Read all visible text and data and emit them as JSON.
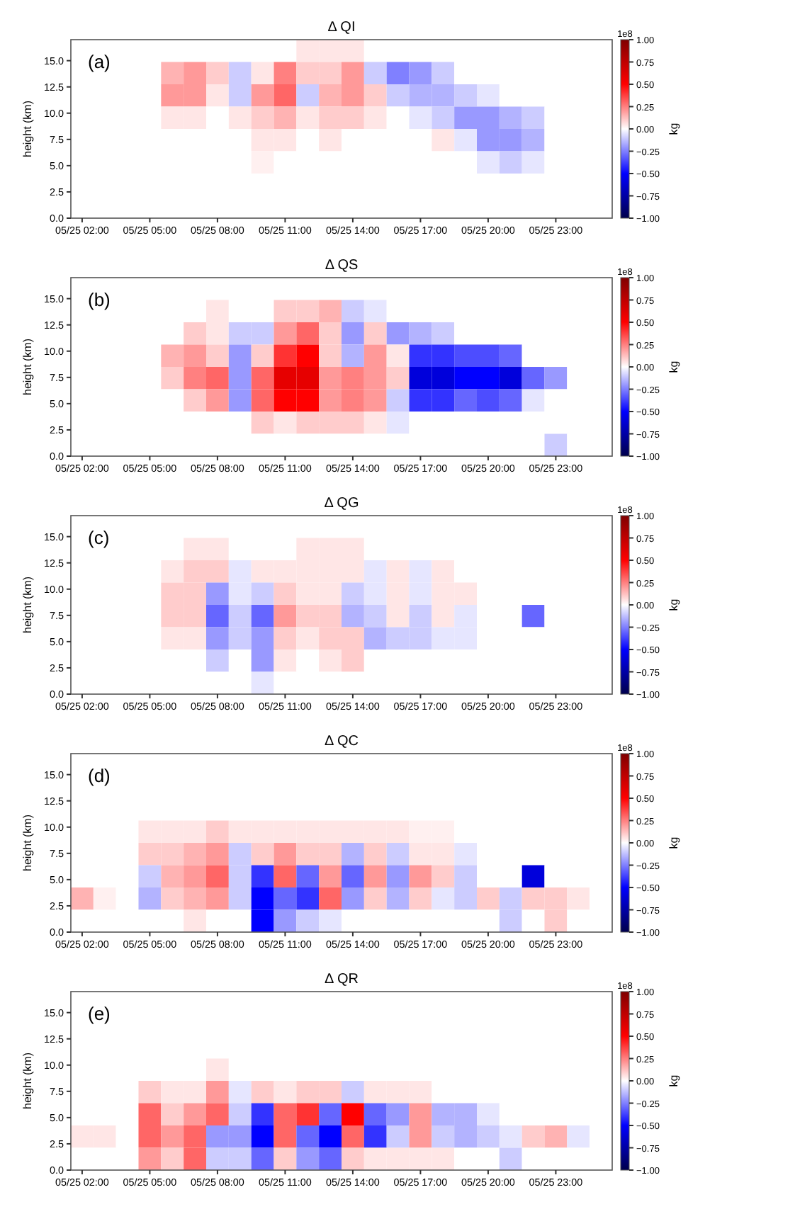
{
  "chart_data": [
    {
      "type": "heatmap",
      "title": "Δ QI",
      "ylabel": "height (km)",
      "clabel": "kg",
      "annotations": [
        "(a)",
        "1e8"
      ],
      "categories": [
        "05/25 02:00",
        null,
        null,
        "05/25 05:00",
        null,
        null,
        "05/25 08:00",
        null,
        null,
        "05/25 11:00",
        null,
        null,
        "05/25 14:00",
        null,
        null,
        "05/25 17:00",
        null,
        null,
        "05/25 20:00",
        null,
        null,
        "05/25 23:00",
        null,
        null
      ],
      "ylim": [
        0,
        17
      ],
      "yticks": [
        {
          "value": 0,
          "label": "0.0"
        },
        2.5,
        {
          "value": 5,
          "label": "5.0"
        },
        7.5,
        {
          "value": 10,
          "label": "10.0"
        },
        12.5,
        {
          "value": 15,
          "label": "15.0"
        }
      ],
      "clim": [
        -1,
        1
      ],
      "cticks": [
        {
          "value": -1,
          "label": "−1.00"
        },
        {
          "value": -0.75,
          "label": "−0.75"
        },
        {
          "value": -0.5,
          "label": "−0.50"
        },
        {
          "value": -0.25,
          "label": "−0.25"
        },
        {
          "value": 0,
          "label": "0.00"
        },
        {
          "value": 0.25,
          "label": "0.25"
        },
        {
          "value": 0.5,
          "label": "0.50"
        },
        {
          "value": 0.75,
          "label": "0.75"
        },
        {
          "value": 1,
          "label": "1.00"
        }
      ],
      "cells": [
        [
          0,
          0,
          0,
          0,
          0,
          0,
          0,
          0,
          0,
          0,
          0.05,
          0.05,
          0.05,
          0,
          0,
          0,
          0,
          0,
          0,
          0,
          0,
          0,
          0,
          0
        ],
        [
          0,
          0,
          0,
          0,
          0.15,
          0.2,
          0.1,
          -0.1,
          0.05,
          0.25,
          0.1,
          0.1,
          0.2,
          -0.1,
          -0.25,
          -0.2,
          -0.1,
          0,
          0,
          0,
          0,
          0,
          0,
          0
        ],
        [
          0,
          0,
          0,
          0,
          0.2,
          0.2,
          0.05,
          -0.1,
          0.2,
          0.3,
          -0.1,
          0.15,
          0.2,
          0.1,
          -0.1,
          -0.15,
          -0.15,
          -0.1,
          -0.05,
          0,
          0,
          0,
          0,
          0
        ],
        [
          0,
          0,
          0,
          0,
          0.05,
          0.05,
          0,
          0.05,
          0.1,
          0.15,
          0.05,
          0.1,
          0.1,
          0.05,
          0,
          -0.05,
          -0.1,
          -0.2,
          -0.2,
          -0.15,
          -0.1,
          0,
          0,
          0
        ],
        [
          0,
          0,
          0,
          0,
          0,
          0,
          0,
          0,
          0.05,
          0.05,
          0,
          0.05,
          0,
          0,
          0,
          0,
          0.05,
          -0.05,
          -0.2,
          -0.2,
          -0.15,
          0,
          0,
          0
        ],
        [
          0,
          0,
          0,
          0,
          0,
          0,
          0,
          0,
          0.03,
          0,
          0,
          0,
          0,
          0,
          0,
          0,
          0,
          0,
          -0.05,
          -0.1,
          -0.05,
          0,
          0,
          0
        ],
        [
          0,
          0,
          0,
          0,
          0,
          0,
          0,
          0,
          0,
          0,
          0,
          0,
          0,
          0,
          0,
          0,
          0,
          0,
          0,
          0,
          0,
          0,
          0,
          0
        ],
        [
          0,
          0,
          0,
          0,
          0,
          0,
          0,
          0,
          0,
          0,
          0,
          0,
          0,
          0,
          0,
          0,
          0,
          0,
          0,
          0,
          0,
          0,
          0,
          0
        ]
      ]
    },
    {
      "type": "heatmap",
      "title": "Δ QS",
      "ylabel": "height (km)",
      "clabel": "kg",
      "annotations": [
        "(b)",
        "1e8"
      ],
      "categories": [
        "05/25 02:00",
        null,
        null,
        "05/25 05:00",
        null,
        null,
        "05/25 08:00",
        null,
        null,
        "05/25 11:00",
        null,
        null,
        "05/25 14:00",
        null,
        null,
        "05/25 17:00",
        null,
        null,
        "05/25 20:00",
        null,
        null,
        "05/25 23:00",
        null,
        null
      ],
      "ylim": [
        0,
        17
      ],
      "yticks": [
        {
          "value": 0,
          "label": "0.0"
        },
        2.5,
        {
          "value": 5,
          "label": "5.0"
        },
        7.5,
        {
          "value": 10,
          "label": "10.0"
        },
        12.5,
        {
          "value": 15,
          "label": "15.0"
        }
      ],
      "clim": [
        -1,
        1
      ],
      "cticks": [
        {
          "value": -1,
          "label": "−1.00"
        },
        {
          "value": -0.75,
          "label": "−0.75"
        },
        {
          "value": -0.5,
          "label": "−0.50"
        },
        {
          "value": -0.25,
          "label": "−0.25"
        },
        {
          "value": 0,
          "label": "0.00"
        },
        {
          "value": 0.25,
          "label": "0.25"
        },
        {
          "value": 0.5,
          "label": "0.50"
        },
        {
          "value": 0.75,
          "label": "0.75"
        },
        {
          "value": 1,
          "label": "1.00"
        }
      ],
      "cells": [
        [
          0,
          0,
          0,
          0,
          0,
          0,
          0,
          0,
          0,
          0,
          0,
          0,
          0,
          0,
          0,
          0,
          0,
          0,
          0,
          0,
          0,
          0,
          0,
          0
        ],
        [
          0,
          0,
          0,
          0,
          0,
          0,
          0.05,
          0,
          0,
          0.1,
          0.1,
          0.15,
          -0.1,
          -0.05,
          0,
          0,
          0,
          0,
          0,
          0,
          0,
          0,
          0,
          0
        ],
        [
          0,
          0,
          0,
          0,
          0,
          0.1,
          0.05,
          -0.1,
          -0.1,
          0.2,
          0.3,
          0.1,
          -0.2,
          0.1,
          -0.2,
          -0.15,
          -0.1,
          0,
          0,
          0,
          0,
          0,
          0,
          0
        ],
        [
          0,
          0,
          0,
          0,
          0.15,
          0.2,
          0.1,
          -0.2,
          0.1,
          0.4,
          0.5,
          0.1,
          -0.15,
          0.2,
          0.05,
          -0.4,
          -0.4,
          -0.35,
          -0.35,
          -0.3,
          0,
          0,
          0,
          0
        ],
        [
          0,
          0,
          0,
          0,
          0.1,
          0.25,
          0.3,
          -0.2,
          0.3,
          0.6,
          0.6,
          0.2,
          0.25,
          0.2,
          0.1,
          -0.6,
          -0.6,
          -0.5,
          -0.5,
          -0.6,
          -0.3,
          -0.2,
          0,
          0
        ],
        [
          0,
          0,
          0,
          0,
          0,
          0.1,
          0.2,
          -0.2,
          0.3,
          0.5,
          0.5,
          0.2,
          0.25,
          0.2,
          -0.1,
          -0.4,
          -0.4,
          -0.3,
          -0.35,
          -0.3,
          -0.05,
          0,
          0,
          0
        ],
        [
          0,
          0,
          0,
          0,
          0,
          0,
          0,
          0,
          0.1,
          0.05,
          0.1,
          0.1,
          0.1,
          0.05,
          -0.05,
          0,
          0,
          0,
          0,
          0,
          0,
          0,
          0,
          0
        ],
        [
          0,
          0,
          0,
          0,
          0,
          0,
          0,
          0,
          0,
          0,
          0,
          0,
          0,
          0,
          0,
          0,
          0,
          0,
          0,
          0,
          0,
          -0.1,
          0,
          0
        ]
      ]
    },
    {
      "type": "heatmap",
      "title": "Δ QG",
      "ylabel": "height (km)",
      "clabel": "kg",
      "annotations": [
        "(c)",
        "1e8"
      ],
      "categories": [
        "05/25 02:00",
        null,
        null,
        "05/25 05:00",
        null,
        null,
        "05/25 08:00",
        null,
        null,
        "05/25 11:00",
        null,
        null,
        "05/25 14:00",
        null,
        null,
        "05/25 17:00",
        null,
        null,
        "05/25 20:00",
        null,
        null,
        "05/25 23:00",
        null,
        null
      ],
      "ylim": [
        0,
        17
      ],
      "yticks": [
        {
          "value": 0,
          "label": "0.0"
        },
        2.5,
        {
          "value": 5,
          "label": "5.0"
        },
        7.5,
        {
          "value": 10,
          "label": "10.0"
        },
        12.5,
        {
          "value": 15,
          "label": "15.0"
        }
      ],
      "clim": [
        -1,
        1
      ],
      "cticks": [
        {
          "value": -1,
          "label": "−1.00"
        },
        {
          "value": -0.75,
          "label": "−0.75"
        },
        {
          "value": -0.5,
          "label": "−0.50"
        },
        {
          "value": -0.25,
          "label": "−0.25"
        },
        {
          "value": 0,
          "label": "0.00"
        },
        {
          "value": 0.25,
          "label": "0.25"
        },
        {
          "value": 0.5,
          "label": "0.50"
        },
        {
          "value": 0.75,
          "label": "0.75"
        },
        {
          "value": 1,
          "label": "1.00"
        }
      ],
      "cells": [
        [
          0,
          0,
          0,
          0,
          0,
          0,
          0,
          0,
          0,
          0,
          0,
          0,
          0,
          0,
          0,
          0,
          0,
          0,
          0,
          0,
          0,
          0,
          0,
          0
        ],
        [
          0,
          0,
          0,
          0,
          0,
          0.05,
          0.05,
          0,
          0,
          0,
          0.05,
          0.05,
          0.05,
          0,
          0,
          0,
          0,
          0,
          0,
          0,
          0,
          0,
          0,
          0
        ],
        [
          0,
          0,
          0,
          0,
          0.05,
          0.1,
          0.1,
          -0.05,
          0.05,
          0.05,
          0.05,
          0.05,
          0.05,
          -0.05,
          0.05,
          -0.05,
          0.05,
          0,
          0,
          0,
          0,
          0,
          0,
          0
        ],
        [
          0,
          0,
          0,
          0,
          0.1,
          0.1,
          -0.2,
          -0.05,
          -0.1,
          0.1,
          0.05,
          0.05,
          -0.1,
          -0.05,
          0.05,
          -0.05,
          0.05,
          0.05,
          0,
          0,
          0,
          0,
          0,
          0
        ],
        [
          0,
          0,
          0,
          0,
          0.1,
          0.1,
          -0.3,
          -0.1,
          -0.3,
          0.2,
          0.1,
          0.1,
          -0.15,
          -0.1,
          0.05,
          -0.1,
          0.05,
          -0.05,
          0,
          0,
          -0.3,
          0,
          0,
          0
        ],
        [
          0,
          0,
          0,
          0,
          0.05,
          0.05,
          -0.2,
          -0.1,
          -0.2,
          0.1,
          0.05,
          0.1,
          0.1,
          -0.15,
          -0.1,
          -0.1,
          -0.05,
          -0.05,
          0,
          0,
          0,
          0,
          0,
          0
        ],
        [
          0,
          0,
          0,
          0,
          0,
          0,
          -0.1,
          0,
          -0.2,
          0.05,
          0,
          0.05,
          0.1,
          0,
          0,
          0,
          0,
          0,
          0,
          0,
          0,
          0,
          0,
          0
        ],
        [
          0,
          0,
          0,
          0,
          0,
          0,
          0,
          0,
          -0.05,
          0,
          0,
          0,
          0,
          0,
          0,
          0,
          0,
          0,
          0,
          0,
          0,
          0,
          0,
          0
        ]
      ]
    },
    {
      "type": "heatmap",
      "title": "Δ QC",
      "ylabel": "height (km)",
      "clabel": "kg",
      "annotations": [
        "(d)",
        "1e8"
      ],
      "categories": [
        "05/25 02:00",
        null,
        null,
        "05/25 05:00",
        null,
        null,
        "05/25 08:00",
        null,
        null,
        "05/25 11:00",
        null,
        null,
        "05/25 14:00",
        null,
        null,
        "05/25 17:00",
        null,
        null,
        "05/25 20:00",
        null,
        null,
        "05/25 23:00",
        null,
        null
      ],
      "ylim": [
        0,
        17
      ],
      "yticks": [
        {
          "value": 0,
          "label": "0.0"
        },
        2.5,
        {
          "value": 5,
          "label": "5.0"
        },
        7.5,
        {
          "value": 10,
          "label": "10.0"
        },
        12.5,
        {
          "value": 15,
          "label": "15.0"
        }
      ],
      "clim": [
        -1,
        1
      ],
      "cticks": [
        {
          "value": -1,
          "label": "−1.00"
        },
        {
          "value": -0.75,
          "label": "−0.75"
        },
        {
          "value": -0.5,
          "label": "−0.50"
        },
        {
          "value": -0.25,
          "label": "−0.25"
        },
        {
          "value": 0,
          "label": "0.00"
        },
        {
          "value": 0.25,
          "label": "0.25"
        },
        {
          "value": 0.5,
          "label": "0.50"
        },
        {
          "value": 0.75,
          "label": "0.75"
        },
        {
          "value": 1,
          "label": "1.00"
        }
      ],
      "cells": [
        [
          0,
          0,
          0,
          0,
          0,
          0,
          0,
          0,
          0,
          0,
          0,
          0,
          0,
          0,
          0,
          0,
          0,
          0,
          0,
          0,
          0,
          0,
          0,
          0
        ],
        [
          0,
          0,
          0,
          0,
          0,
          0,
          0,
          0,
          0,
          0,
          0,
          0,
          0,
          0,
          0,
          0,
          0,
          0,
          0,
          0,
          0,
          0,
          0,
          0
        ],
        [
          0,
          0,
          0,
          0,
          0,
          0,
          0,
          0,
          0,
          0,
          0,
          0,
          0,
          0,
          0,
          0,
          0,
          0,
          0,
          0,
          0,
          0,
          0,
          0
        ],
        [
          0,
          0,
          0,
          0.05,
          0.05,
          0.05,
          0.1,
          0.05,
          0.05,
          0.05,
          0.05,
          0.05,
          0.05,
          0.05,
          0.05,
          0.03,
          0.03,
          0,
          0,
          0,
          0,
          0,
          0,
          0
        ],
        [
          0,
          0,
          0,
          0.1,
          0.1,
          0.15,
          0.2,
          -0.1,
          0.1,
          0.2,
          0.1,
          0.1,
          -0.15,
          0.1,
          -0.1,
          0.05,
          0.05,
          -0.05,
          0,
          0,
          0,
          0,
          0,
          0
        ],
        [
          0,
          0,
          0,
          -0.1,
          0.15,
          0.2,
          0.3,
          -0.1,
          -0.4,
          0.3,
          -0.3,
          0.2,
          -0.3,
          0.2,
          -0.2,
          0.2,
          0.1,
          -0.1,
          0,
          0,
          -0.6,
          0,
          0,
          0
        ],
        [
          0.15,
          0.03,
          0,
          -0.15,
          0.1,
          0.15,
          0.2,
          -0.1,
          -0.5,
          -0.3,
          -0.4,
          0.3,
          -0.2,
          0.1,
          -0.15,
          0.1,
          -0.05,
          -0.1,
          0.1,
          -0.1,
          0.1,
          0.1,
          0.05,
          0
        ],
        [
          0,
          0,
          0,
          0,
          0,
          0.05,
          0,
          0,
          -0.5,
          -0.2,
          -0.1,
          -0.05,
          0,
          0,
          0,
          0,
          0,
          0,
          0,
          -0.1,
          0,
          0.1,
          0,
          0
        ]
      ]
    },
    {
      "type": "heatmap",
      "title": "Δ QR",
      "ylabel": "height (km)",
      "clabel": "kg",
      "annotations": [
        "(e)",
        "1e8"
      ],
      "categories": [
        "05/25 02:00",
        null,
        null,
        "05/25 05:00",
        null,
        null,
        "05/25 08:00",
        null,
        null,
        "05/25 11:00",
        null,
        null,
        "05/25 14:00",
        null,
        null,
        "05/25 17:00",
        null,
        null,
        "05/25 20:00",
        null,
        null,
        "05/25 23:00",
        null,
        null
      ],
      "ylim": [
        0,
        17
      ],
      "yticks": [
        {
          "value": 0,
          "label": "0.0"
        },
        2.5,
        {
          "value": 5,
          "label": "5.0"
        },
        7.5,
        {
          "value": 10,
          "label": "10.0"
        },
        12.5,
        {
          "value": 15,
          "label": "15.0"
        }
      ],
      "clim": [
        -1,
        1
      ],
      "cticks": [
        {
          "value": -1,
          "label": "−1.00"
        },
        {
          "value": -0.75,
          "label": "−0.75"
        },
        {
          "value": -0.5,
          "label": "−0.50"
        },
        {
          "value": -0.25,
          "label": "−0.25"
        },
        {
          "value": 0,
          "label": "0.00"
        },
        {
          "value": 0.25,
          "label": "0.25"
        },
        {
          "value": 0.5,
          "label": "0.50"
        },
        {
          "value": 0.75,
          "label": "0.75"
        },
        {
          "value": 1,
          "label": "1.00"
        }
      ],
      "cells": [
        [
          0,
          0,
          0,
          0,
          0,
          0,
          0,
          0,
          0,
          0,
          0,
          0,
          0,
          0,
          0,
          0,
          0,
          0,
          0,
          0,
          0,
          0,
          0,
          0
        ],
        [
          0,
          0,
          0,
          0,
          0,
          0,
          0,
          0,
          0,
          0,
          0,
          0,
          0,
          0,
          0,
          0,
          0,
          0,
          0,
          0,
          0,
          0,
          0,
          0
        ],
        [
          0,
          0,
          0,
          0,
          0,
          0,
          0,
          0,
          0,
          0,
          0,
          0,
          0,
          0,
          0,
          0,
          0,
          0,
          0,
          0,
          0,
          0,
          0,
          0
        ],
        [
          0,
          0,
          0,
          0,
          0,
          0,
          0.05,
          0,
          0,
          0,
          0,
          0,
          0,
          0,
          0,
          0,
          0,
          0,
          0,
          0,
          0,
          0,
          0,
          0
        ],
        [
          0,
          0,
          0,
          0.1,
          0.05,
          0.05,
          0.2,
          -0.05,
          0.1,
          0.05,
          0.1,
          0.1,
          -0.1,
          0.05,
          0.05,
          0.05,
          0,
          0,
          0,
          0,
          0,
          0,
          0,
          0
        ],
        [
          0,
          0,
          0,
          0.3,
          0.1,
          0.2,
          0.3,
          -0.1,
          -0.4,
          0.3,
          0.4,
          -0.3,
          0.5,
          -0.3,
          -0.2,
          0.2,
          -0.15,
          -0.15,
          -0.05,
          0,
          0,
          0,
          0,
          0
        ],
        [
          0.05,
          0.05,
          0,
          0.3,
          0.2,
          0.3,
          -0.2,
          -0.2,
          -0.5,
          0.3,
          -0.3,
          -0.5,
          0.3,
          -0.4,
          -0.1,
          0.2,
          -0.1,
          -0.15,
          -0.1,
          -0.05,
          0.1,
          0.15,
          -0.05,
          0
        ],
        [
          0,
          0,
          0,
          0.2,
          0.1,
          0.3,
          -0.1,
          -0.1,
          -0.3,
          0.1,
          -0.2,
          -0.3,
          0.1,
          0.05,
          0.05,
          0.05,
          0.05,
          0,
          0,
          -0.1,
          0,
          0,
          0,
          0
        ]
      ]
    }
  ]
}
